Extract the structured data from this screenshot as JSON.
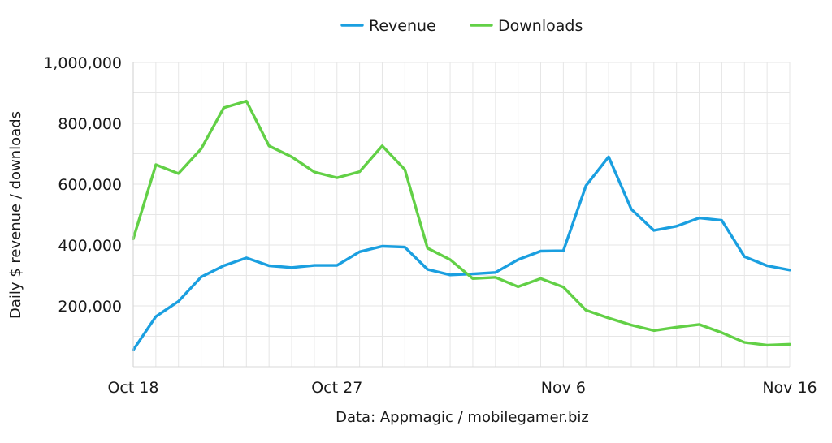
{
  "chart_data": {
    "type": "line",
    "x": [
      "Oct 18",
      "Oct 19",
      "Oct 20",
      "Oct 21",
      "Oct 22",
      "Oct 23",
      "Oct 24",
      "Oct 25",
      "Oct 26",
      "Oct 27",
      "Oct 28",
      "Oct 29",
      "Oct 30",
      "Oct 31",
      "Nov 1",
      "Nov 2",
      "Nov 3",
      "Nov 4",
      "Nov 5",
      "Nov 6",
      "Nov 7",
      "Nov 8",
      "Nov 9",
      "Nov 10",
      "Nov 11",
      "Nov 12",
      "Nov 13",
      "Nov 14",
      "Nov 15",
      "Nov 16"
    ],
    "x_tick_labels": [
      "Oct 18",
      "Oct 27",
      "Nov 6",
      "Nov 16"
    ],
    "series": [
      {
        "name": "Revenue",
        "color": "#1a9fe0",
        "values": [
          55000,
          165000,
          215000,
          295000,
          332000,
          358000,
          332000,
          326000,
          333000,
          333000,
          378000,
          396000,
          393000,
          320000,
          302000,
          305000,
          310000,
          352000,
          380000,
          381000,
          595000,
          690000,
          518000,
          448000,
          462000,
          489000,
          481000,
          362000,
          332000,
          318000
        ]
      },
      {
        "name": "Downloads",
        "color": "#62d046",
        "values": [
          420000,
          664000,
          635000,
          716000,
          851000,
          873000,
          726000,
          690000,
          640000,
          621000,
          641000,
          726000,
          648000,
          390000,
          352000,
          290000,
          294000,
          263000,
          290000,
          262000,
          186000,
          160000,
          137000,
          119000,
          130000,
          139000,
          112000,
          80000,
          71000,
          74000
        ]
      }
    ],
    "ylabel": "Daily $ revenue / downloads",
    "xlabel": "Data: Appmagic / mobilegamer.biz",
    "yticks": [
      200000,
      400000,
      600000,
      800000,
      1000000
    ],
    "ytick_labels": [
      "200,000",
      "400,000",
      "600,000",
      "800,000",
      "1,000,000"
    ],
    "ylim": [
      0,
      1000000
    ],
    "grid": true,
    "legend_position": "top-center"
  }
}
